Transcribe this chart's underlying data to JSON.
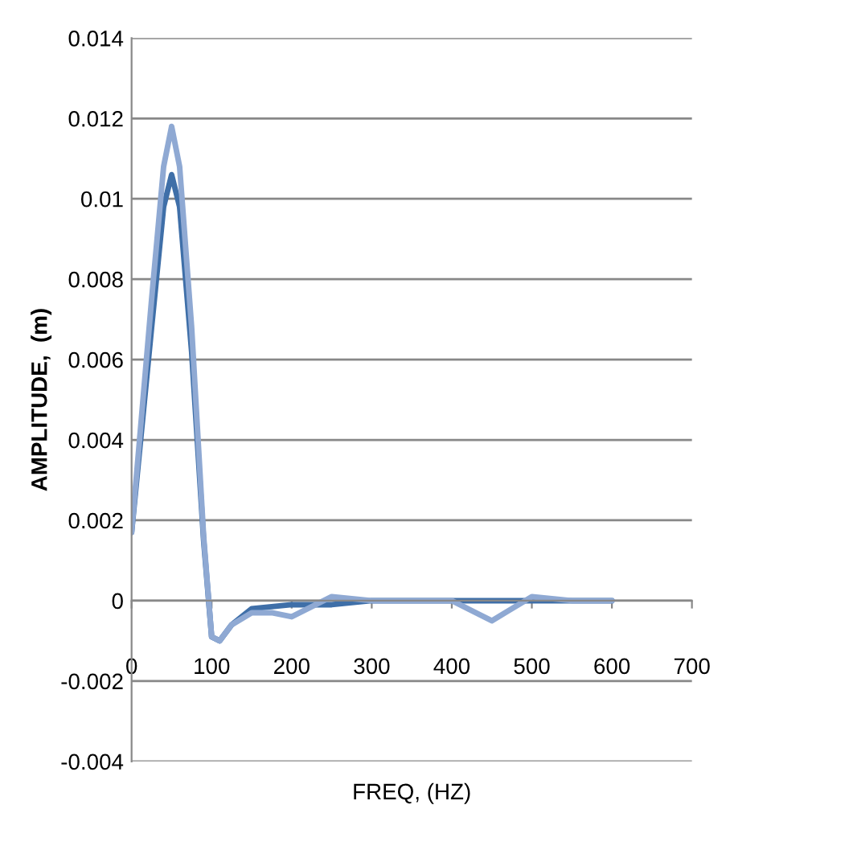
{
  "chart_data": {
    "type": "line",
    "xlabel": "FREQ, (HZ)",
    "ylabel": "AMPLITUDE,  (m)",
    "x": [
      0,
      25,
      40,
      50,
      60,
      75,
      90,
      100,
      110,
      125,
      150,
      175,
      200,
      250,
      300,
      350,
      400,
      450,
      500,
      550,
      600
    ],
    "series": [
      {
        "color": "#3f6fa8",
        "values": [
          0.0017,
          0.0068,
          0.0098,
          0.0106,
          0.0098,
          0.0062,
          0.0015,
          -0.0009,
          -0.001,
          -0.0006,
          -0.0002,
          -0.00015,
          -0.0001,
          -0.0001,
          0,
          0,
          0,
          0,
          0,
          0,
          0
        ]
      },
      {
        "color": "#8fa9d3",
        "values": [
          0.0017,
          0.0075,
          0.0108,
          0.0118,
          0.0108,
          0.0068,
          0.0016,
          -0.0009,
          -0.001,
          -0.0006,
          -0.0003,
          -0.0003,
          -0.0004,
          0.0001,
          0,
          0,
          0,
          -0.0005,
          0.0001,
          0,
          0
        ]
      }
    ],
    "xlim": [
      0,
      700
    ],
    "xticks": [
      0,
      100,
      200,
      300,
      400,
      500,
      600,
      700
    ],
    "ylim": [
      -0.004,
      0.014
    ],
    "yticks": [
      -0.004,
      -0.002,
      0,
      0.002,
      0.004,
      0.006,
      0.008,
      0.01,
      0.012,
      0.014
    ],
    "grid": "y",
    "marker": "none",
    "line_style": "solid"
  }
}
